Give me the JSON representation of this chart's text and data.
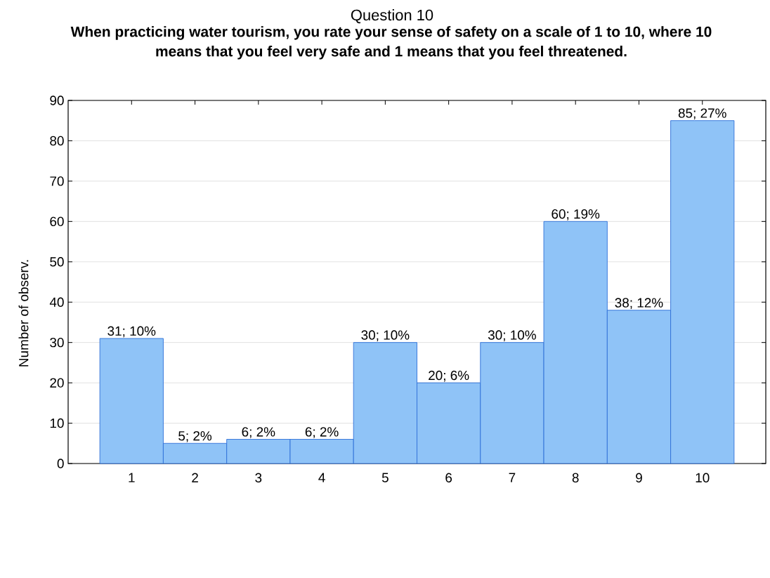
{
  "chart_data": {
    "type": "bar",
    "title": "Question 10",
    "subtitle": "When practicing water tourism, you rate your sense of safety on a scale of 1 to 10, where 10 means that you feel very safe and 1 means that you feel threatened.",
    "ylabel": "Number of observ.",
    "categories": [
      "1",
      "2",
      "3",
      "4",
      "5",
      "6",
      "7",
      "8",
      "9",
      "10"
    ],
    "values": [
      31,
      5,
      6,
      6,
      30,
      20,
      30,
      60,
      38,
      85
    ],
    "value_labels": [
      "31; 10%",
      "5; 2%",
      "6; 2%",
      "6; 2%",
      "30; 10%",
      "20; 6%",
      "30; 10%",
      "60; 19%",
      "38; 12%",
      "85; 27%"
    ],
    "color": "#8fc3f7",
    "ylim": [
      0,
      90
    ],
    "yticks": [
      0,
      10,
      20,
      30,
      40,
      50,
      60,
      70,
      80,
      90
    ],
    "grid": "y"
  }
}
